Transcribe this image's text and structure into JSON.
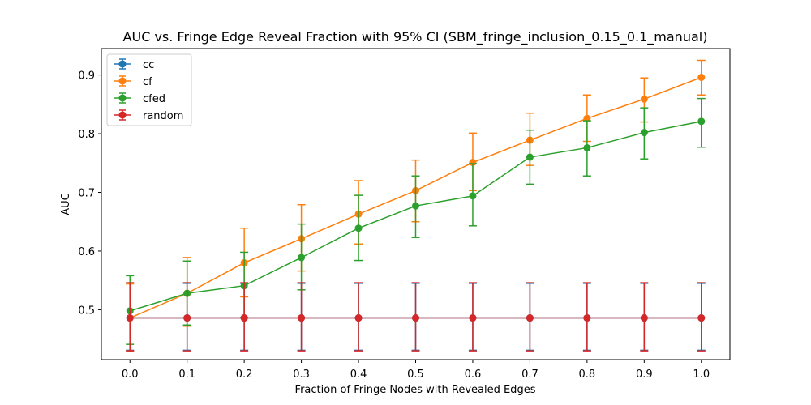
{
  "chart_data": {
    "type": "line",
    "title": "AUC vs. Fringe Edge Reveal Fraction with 95% CI (SBM_fringe_inclusion_0.15_0.1_manual)",
    "xlabel": "Fraction of Fringe Nodes with Revealed Edges",
    "ylabel": "AUC",
    "x": [
      0.0,
      0.1,
      0.2,
      0.3,
      0.4,
      0.5,
      0.6,
      0.7,
      0.8,
      0.9,
      1.0
    ],
    "x_tick_labels": [
      "0.0",
      "0.1",
      "0.2",
      "0.3",
      "0.4",
      "0.5",
      "0.6",
      "0.7",
      "0.8",
      "0.9",
      "1.0"
    ],
    "y_ticks": [
      "0.5",
      "0.6",
      "0.7",
      "0.8",
      "0.9"
    ],
    "xlim": [
      -0.05,
      1.05
    ],
    "ylim": [
      0.415,
      0.945
    ],
    "grid": false,
    "legend_position": "top-left",
    "error_bars": "95% CI",
    "series": [
      {
        "name": "cc",
        "color": "#1f77b4",
        "values": [
          0.486,
          0.486,
          0.486,
          0.486,
          0.486,
          0.486,
          0.486,
          0.486,
          0.486,
          0.486,
          0.486
        ],
        "lower": [
          0.431,
          0.431,
          0.431,
          0.431,
          0.431,
          0.431,
          0.431,
          0.431,
          0.431,
          0.431,
          0.431
        ],
        "upper": [
          0.545,
          0.545,
          0.545,
          0.545,
          0.545,
          0.545,
          0.545,
          0.545,
          0.545,
          0.545,
          0.545
        ]
      },
      {
        "name": "cf",
        "color": "#ff7f0e",
        "values": [
          0.486,
          0.528,
          0.58,
          0.621,
          0.663,
          0.703,
          0.751,
          0.789,
          0.826,
          0.859,
          0.896
        ],
        "lower": [
          0.43,
          0.472,
          0.522,
          0.566,
          0.612,
          0.65,
          0.703,
          0.746,
          0.787,
          0.82,
          0.866
        ],
        "upper": [
          0.544,
          0.589,
          0.639,
          0.679,
          0.72,
          0.755,
          0.801,
          0.835,
          0.866,
          0.895,
          0.925
        ]
      },
      {
        "name": "cfed",
        "color": "#2ca02c",
        "values": [
          0.498,
          0.528,
          0.541,
          0.589,
          0.639,
          0.677,
          0.694,
          0.76,
          0.776,
          0.802,
          0.821
        ],
        "lower": [
          0.441,
          0.474,
          0.487,
          0.534,
          0.584,
          0.623,
          0.643,
          0.714,
          0.728,
          0.757,
          0.777
        ],
        "upper": [
          0.558,
          0.583,
          0.598,
          0.646,
          0.695,
          0.728,
          0.749,
          0.806,
          0.822,
          0.844,
          0.86
        ]
      },
      {
        "name": "random",
        "color": "#d62728",
        "values": [
          0.486,
          0.486,
          0.486,
          0.486,
          0.486,
          0.486,
          0.486,
          0.486,
          0.486,
          0.486,
          0.486
        ],
        "lower": [
          0.43,
          0.43,
          0.43,
          0.43,
          0.43,
          0.43,
          0.43,
          0.43,
          0.43,
          0.43,
          0.43
        ],
        "upper": [
          0.546,
          0.546,
          0.546,
          0.546,
          0.546,
          0.546,
          0.546,
          0.546,
          0.546,
          0.546,
          0.546
        ]
      }
    ]
  }
}
